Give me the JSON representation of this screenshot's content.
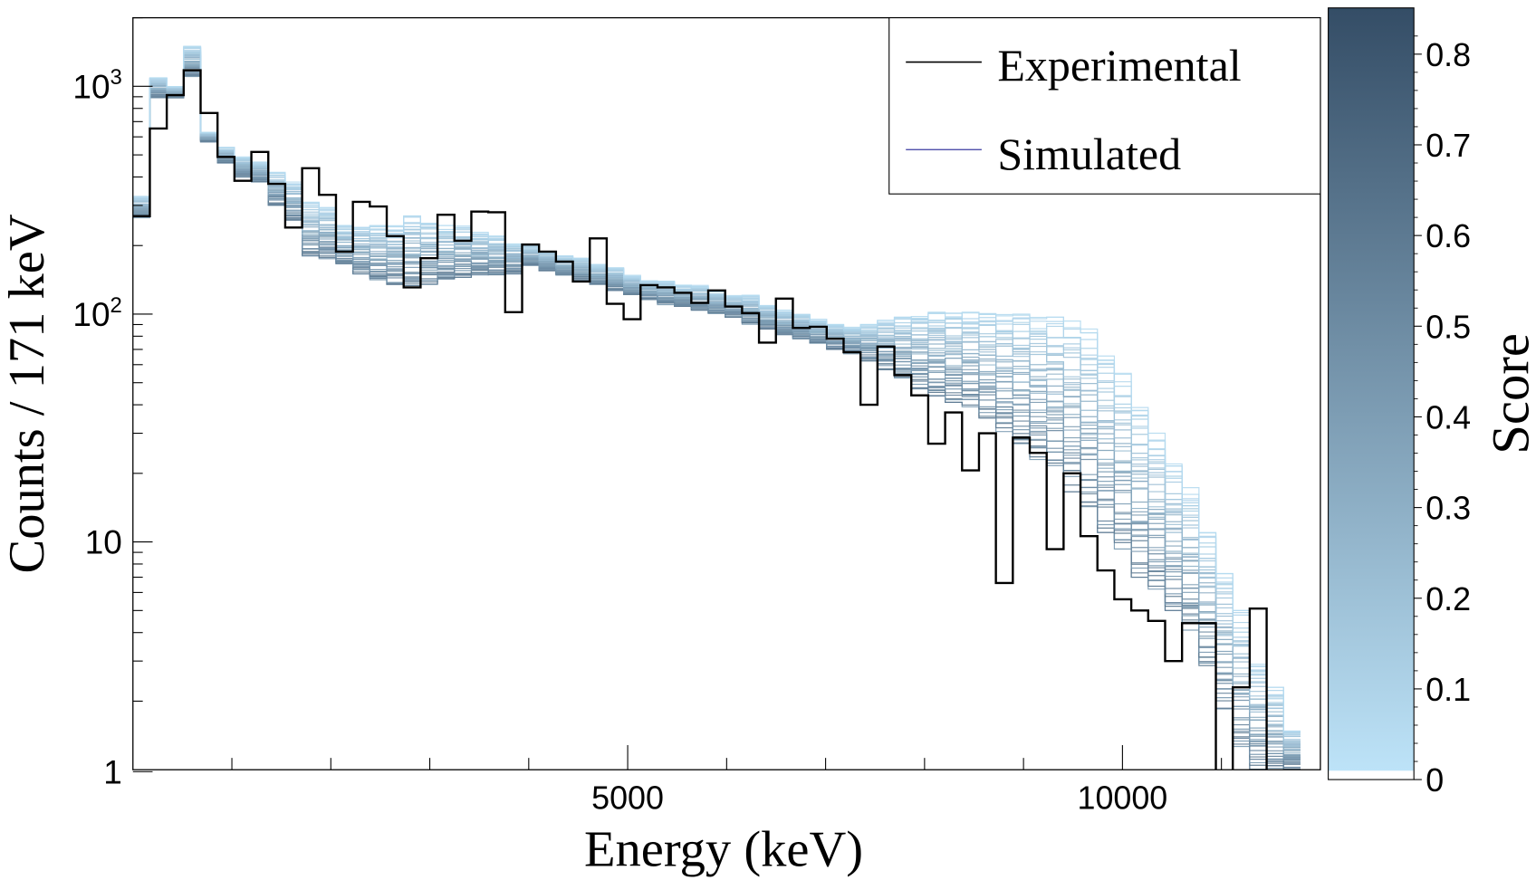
{
  "chart_data": {
    "type": "histogram-line",
    "xlabel": "Energy (keV)",
    "ylabel": "Counts / 171 keV",
    "xlim": [
      0,
      12000
    ],
    "ylim": [
      1,
      2000
    ],
    "yscale": "log",
    "grid": false,
    "bin_width": 171,
    "x_ticks": [
      {
        "value": 5000,
        "label": "5000"
      },
      {
        "value": 10000,
        "label": "10000"
      }
    ],
    "y_ticks": [
      {
        "value": 1000,
        "base": "10",
        "exp": "3"
      },
      {
        "value": 100,
        "base": "10",
        "exp": "2"
      },
      {
        "value": 10,
        "base": "10",
        "exp": ""
      },
      {
        "value": 1,
        "base": "1",
        "exp": ""
      }
    ],
    "legend": {
      "placement": "top-right",
      "entries": [
        {
          "label": "Experimental",
          "color": "#000000"
        },
        {
          "label": "Simulated",
          "color": "#3a3aa0"
        }
      ]
    },
    "series": [
      {
        "name": "Experimental",
        "color": "#000000",
        "values": [
          269,
          653,
          915,
          1176,
          764,
          490,
          385,
          515,
          373,
          240,
          437,
          334,
          188,
          311,
          297,
          220,
          131,
          176,
          273,
          210,
          282,
          280,
          102,
          202,
          188,
          170,
          139,
          215,
          111,
          95,
          134,
          131,
          124,
          112,
          127,
          108,
          101,
          75,
          117,
          87,
          88,
          78,
          68,
          40,
          72,
          54,
          44,
          27,
          37,
          20.6,
          30,
          6.6,
          28.7,
          24.6,
          9.3,
          20,
          10.6,
          7.5,
          5.6,
          5.0,
          4.5,
          3.0,
          4.4,
          4.4,
          0,
          2.3,
          5.1,
          0,
          0
        ]
      },
      {
        "name": "Simulated",
        "note_type": "ensemble envelope per bin, colored by score",
        "upper": [
          330,
          1090,
          1000,
          1500,
          630,
          540,
          490,
          465,
          420,
          380,
          310,
          295,
          245,
          245,
          245,
          245,
          270,
          255,
          245,
          245,
          230,
          220,
          205,
          200,
          190,
          180,
          177,
          165,
          160,
          148,
          140,
          140,
          134,
          134,
          127,
          121,
          121,
          110,
          104,
          100,
          95,
          90,
          88,
          90,
          95,
          97,
          100,
          102,
          102,
          102,
          102,
          102,
          100,
          100,
          97,
          95,
          86,
          68,
          55,
          40,
          30,
          22,
          17.4,
          11,
          7.5,
          5,
          3,
          2.3,
          1.5
        ],
        "lower": [
          265,
          890,
          890,
          1100,
          570,
          460,
          400,
          380,
          300,
          255,
          180,
          175,
          165,
          150,
          140,
          135,
          130,
          135,
          140,
          145,
          148,
          148,
          150,
          163,
          155,
          148,
          140,
          134,
          127,
          121,
          116,
          110,
          108,
          104,
          100,
          97,
          90,
          86,
          81,
          78,
          74,
          70,
          67,
          62,
          57,
          52,
          47,
          43,
          41,
          39,
          35,
          30,
          27,
          23,
          21,
          16.6,
          13.6,
          11,
          9,
          7,
          6.1,
          5,
          4.1,
          2.8,
          1.85,
          1.25,
          1,
          1,
          1
        ]
      }
    ],
    "colorbar": {
      "label": "Score",
      "range": [
        0,
        0.84
      ],
      "ticks": [
        "0",
        "0.1",
        "0.2",
        "0.3",
        "0.4",
        "0.5",
        "0.6",
        "0.7",
        "0.8"
      ],
      "color_low": "#bde3f8",
      "color_high": "#344d66"
    }
  }
}
